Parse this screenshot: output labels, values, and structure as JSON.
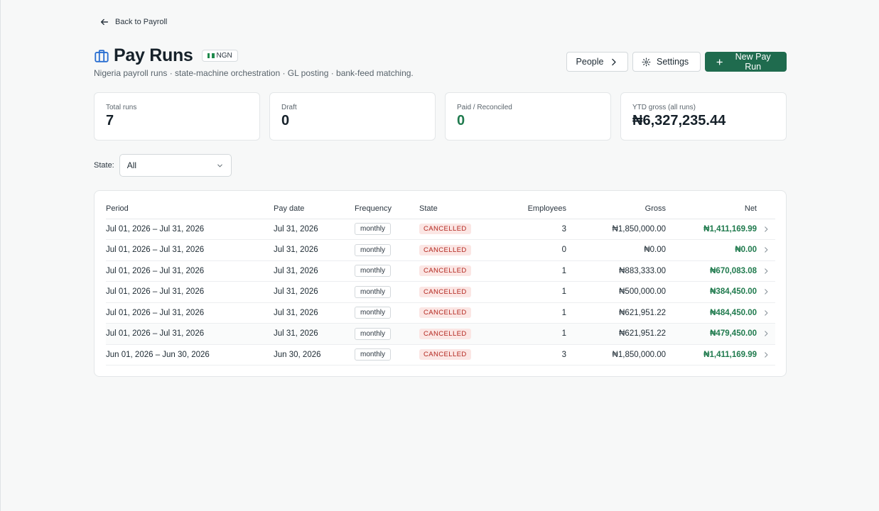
{
  "back_link": {
    "label": "Back to Payroll"
  },
  "header": {
    "title": "Pay Runs",
    "currency_badge": "NGN",
    "subtitle": "Nigeria payroll runs · state-machine orchestration · GL posting · bank-feed matching."
  },
  "actions": {
    "people_label": "People",
    "settings_label": "Settings",
    "new_label": "New Pay Run"
  },
  "stats": [
    {
      "label": "Total runs",
      "value": "7"
    },
    {
      "label": "Draft",
      "value": "0"
    },
    {
      "label": "Paid / Reconciled",
      "value": "0"
    },
    {
      "label": "YTD gross (all runs)",
      "value": "₦6,327,235.44"
    }
  ],
  "filter": {
    "label": "State:",
    "value": "All"
  },
  "table": {
    "columns": [
      "Period",
      "Pay date",
      "Frequency",
      "State",
      "Employees",
      "Gross",
      "Net"
    ],
    "rows": [
      {
        "period": "Jul 01, 2026 – Jul 31, 2026",
        "pay_date": "Jul 31, 2026",
        "frequency": "monthly",
        "state": "CANCELLED",
        "employees": "3",
        "gross": "₦1,850,000.00",
        "net": "₦1,411,169.99"
      },
      {
        "period": "Jul 01, 2026 – Jul 31, 2026",
        "pay_date": "Jul 31, 2026",
        "frequency": "monthly",
        "state": "CANCELLED",
        "employees": "0",
        "gross": "₦0.00",
        "net": "₦0.00"
      },
      {
        "period": "Jul 01, 2026 – Jul 31, 2026",
        "pay_date": "Jul 31, 2026",
        "frequency": "monthly",
        "state": "CANCELLED",
        "employees": "1",
        "gross": "₦883,333.00",
        "net": "₦670,083.08"
      },
      {
        "period": "Jul 01, 2026 – Jul 31, 2026",
        "pay_date": "Jul 31, 2026",
        "frequency": "monthly",
        "state": "CANCELLED",
        "employees": "1",
        "gross": "₦500,000.00",
        "net": "₦384,450.00"
      },
      {
        "period": "Jul 01, 2026 – Jul 31, 2026",
        "pay_date": "Jul 31, 2026",
        "frequency": "monthly",
        "state": "CANCELLED",
        "employees": "1",
        "gross": "₦621,951.22",
        "net": "₦484,450.00"
      },
      {
        "period": "Jul 01, 2026 – Jul 31, 2026",
        "pay_date": "Jul 31, 2026",
        "frequency": "monthly",
        "state": "CANCELLED",
        "employees": "1",
        "gross": "₦621,951.22",
        "net": "₦479,450.00"
      },
      {
        "period": "Jun 01, 2026 – Jun 30, 2026",
        "pay_date": "Jun 30, 2026",
        "frequency": "monthly",
        "state": "CANCELLED",
        "employees": "3",
        "gross": "₦1,850,000.00",
        "net": "₦1,411,169.99"
      }
    ]
  },
  "colors": {
    "primary": "#1f6b4e",
    "accent_green": "#1f7a4d",
    "cancelled_text": "#b3261e",
    "cancelled_bg": "#fbe6e4"
  },
  "icons": {
    "back": "arrow-left-icon",
    "title": "briefcase-icon",
    "people": "chevron-right-icon",
    "settings": "gear-icon",
    "new": "plus-icon",
    "select": "chevron-down-icon",
    "row": "chevron-right-icon"
  }
}
